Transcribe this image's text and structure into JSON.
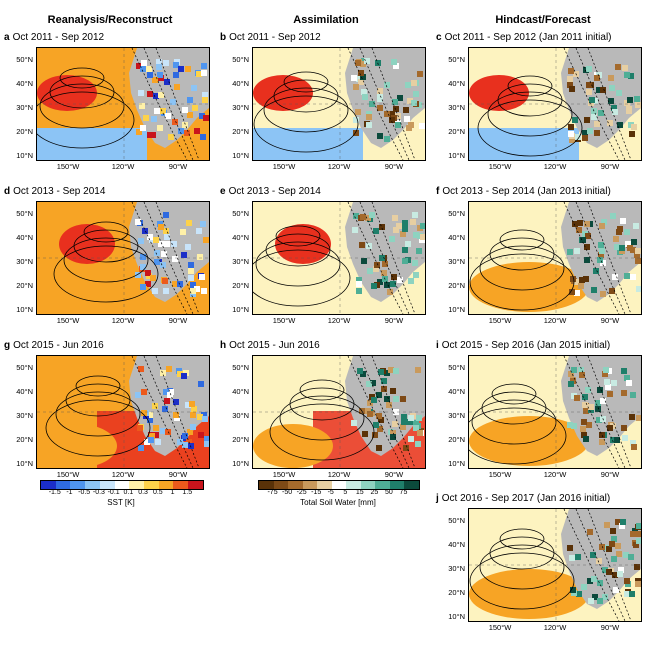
{
  "columns": [
    "Reanalysis/Reconstruct",
    "Assimilation",
    "Hindcast/Forecast"
  ],
  "panels": [
    {
      "letter": "a",
      "title": "Oct 2011 - Sep 2012",
      "field": "sst"
    },
    {
      "letter": "b",
      "title": "Oct 2011 - Sep 2012",
      "field": "soil"
    },
    {
      "letter": "c",
      "title": "Oct 2011 - Sep 2012 (Jan 2011 initial)",
      "field": "soil"
    },
    {
      "letter": "d",
      "title": "Oct 2013 - Sep 2014",
      "field": "sst"
    },
    {
      "letter": "e",
      "title": "Oct 2013 - Sep 2014",
      "field": "soil"
    },
    {
      "letter": "f",
      "title": "Oct 2013 - Sep 2014 (Jan 2013 initial)",
      "field": "soil"
    },
    {
      "letter": "g",
      "title": "Oct 2015 - Jun 2016",
      "field": "sst"
    },
    {
      "letter": "h",
      "title": "Oct 2015 - Jun 2016",
      "field": "soil"
    },
    {
      "letter": "i",
      "title": "Oct 2015 - Sep 2016 (Jan 2015 initial)",
      "field": "soil"
    },
    {
      "letter": "j",
      "title": "Oct 2016 - Sep 2017 (Jan 2016 initial)",
      "field": "soil"
    }
  ],
  "lat_labels": [
    "50°N",
    "40°N",
    "30°N",
    "20°N",
    "10°N"
  ],
  "lon_labels": [
    "150°W",
    "120°W",
    "90°W"
  ],
  "sst_colorbar": {
    "label": "SST [K]",
    "ticks": [
      "-1.5",
      "-1",
      "-0.5",
      "-0.3",
      "-0.1",
      "0.1",
      "0.3",
      "0.5",
      "1",
      "1.5"
    ],
    "colors": [
      "#1b2ec8",
      "#2f6ae0",
      "#4f95ef",
      "#8cc4f5",
      "#c8e4fa",
      "#ffffff",
      "#fff1a8",
      "#fdd24a",
      "#f7a425",
      "#ec5a1c",
      "#c8141c"
    ]
  },
  "soil_colorbar": {
    "label": "Total Soil Water [mm]",
    "ticks": [
      "-75",
      "-50",
      "-25",
      "-15",
      "-5",
      "5",
      "15",
      "25",
      "50",
      "75"
    ],
    "colors": [
      "#5a3208",
      "#7e4a16",
      "#a46a2c",
      "#c99a5c",
      "#e7cfa2",
      "#ffffff",
      "#c8ebe2",
      "#8ed3c0",
      "#4fae96",
      "#1f7f6a",
      "#0b4a3c"
    ]
  },
  "colors": {
    "land": "#b9b9b9",
    "ocean_warm": "#f7a425",
    "ocean_hot": "#e8301e",
    "ocean_neutral": "#fdf3c0",
    "ocean_cool": "#8cc4f5"
  }
}
